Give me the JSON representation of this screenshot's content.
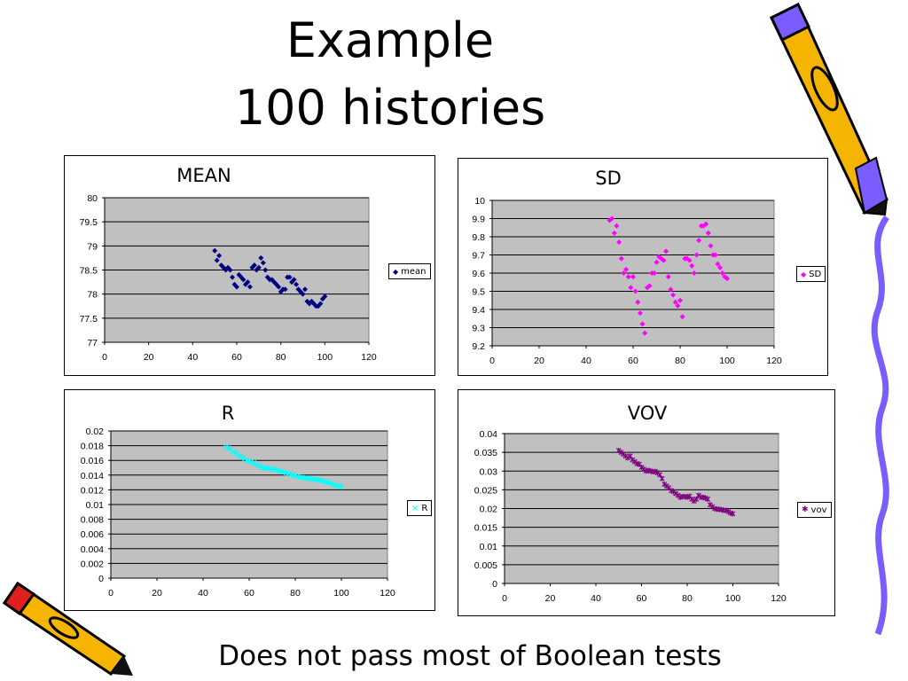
{
  "slide": {
    "title_line1": "Example",
    "title_line2": "100 histories",
    "footer": "Does not pass most of Boolean tests"
  },
  "chart_data": [
    {
      "id": "mean",
      "type": "scatter",
      "title": "MEAN",
      "legend": "mean",
      "marker": "diamond",
      "color": "#000080",
      "xlim": [
        0,
        120
      ],
      "xticks": [
        0,
        20,
        40,
        60,
        80,
        100,
        120
      ],
      "ylim": [
        77,
        80
      ],
      "yticks": [
        "77",
        "77.5",
        "78",
        "78.5",
        "79",
        "79.5",
        "80"
      ],
      "grid": true,
      "legend_position": "right",
      "x": [
        50,
        51,
        52,
        53,
        54,
        55,
        56,
        57,
        58,
        59,
        60,
        61,
        62,
        63,
        64,
        65,
        66,
        67,
        68,
        69,
        70,
        71,
        72,
        73,
        74,
        75,
        76,
        77,
        78,
        79,
        80,
        81,
        82,
        83,
        84,
        85,
        86,
        87,
        88,
        89,
        90,
        91,
        92,
        93,
        94,
        95,
        96,
        97,
        98,
        99,
        100
      ],
      "y": [
        78.9,
        78.7,
        78.8,
        78.6,
        78.55,
        78.5,
        78.55,
        78.5,
        78.35,
        78.2,
        78.15,
        78.4,
        78.35,
        78.3,
        78.2,
        78.25,
        78.15,
        78.55,
        78.6,
        78.5,
        78.55,
        78.75,
        78.65,
        78.5,
        78.35,
        78.3,
        78.3,
        78.25,
        78.2,
        78.15,
        78.05,
        78.1,
        78.1,
        78.35,
        78.35,
        78.25,
        78.3,
        78.2,
        78.1,
        78.05,
        78,
        78.1,
        77.85,
        77.8,
        77.85,
        77.8,
        77.75,
        77.75,
        77.8,
        77.9,
        77.95
      ]
    },
    {
      "id": "sd",
      "type": "scatter",
      "title": "SD",
      "legend": "SD",
      "marker": "diamond",
      "color": "#ff00ff",
      "xlim": [
        0,
        120
      ],
      "xticks": [
        0,
        20,
        40,
        60,
        80,
        100,
        120
      ],
      "ylim": [
        9.2,
        10
      ],
      "yticks": [
        "9.2",
        "9.3",
        "9.4",
        "9.5",
        "9.6",
        "9.7",
        "9.8",
        "9.9",
        "10"
      ],
      "grid": true,
      "legend_position": "right",
      "x": [
        50,
        51,
        52,
        53,
        54,
        55,
        56,
        57,
        58,
        59,
        60,
        61,
        62,
        63,
        64,
        65,
        66,
        67,
        68,
        69,
        70,
        71,
        72,
        73,
        74,
        75,
        76,
        77,
        78,
        79,
        80,
        81,
        82,
        83,
        84,
        85,
        86,
        87,
        88,
        89,
        90,
        91,
        92,
        93,
        94,
        95,
        96,
        97,
        98,
        99,
        100
      ],
      "y": [
        9.89,
        9.9,
        9.82,
        9.86,
        9.77,
        9.68,
        9.6,
        9.62,
        9.58,
        9.52,
        9.58,
        9.5,
        9.44,
        9.38,
        9.32,
        9.27,
        9.52,
        9.53,
        9.6,
        9.6,
        9.66,
        9.69,
        9.68,
        9.67,
        9.72,
        9.58,
        9.51,
        9.48,
        9.44,
        9.42,
        9.45,
        9.36,
        9.68,
        9.68,
        9.67,
        9.64,
        9.6,
        9.7,
        9.78,
        9.86,
        9.86,
        9.87,
        9.82,
        9.75,
        9.7,
        9.7,
        9.65,
        9.63,
        9.6,
        9.58,
        9.57
      ]
    },
    {
      "id": "r",
      "type": "scatter",
      "title": "R",
      "legend": "R",
      "marker": "x",
      "color": "#00ffff",
      "xlim": [
        0,
        120
      ],
      "xticks": [
        0,
        20,
        40,
        60,
        80,
        100,
        120
      ],
      "ylim": [
        0,
        0.02
      ],
      "yticks": [
        "0",
        "0.002",
        "0.004",
        "0.006",
        "0.008",
        "0.01",
        "0.012",
        "0.014",
        "0.016",
        "0.018",
        "0.02"
      ],
      "grid": true,
      "legend_position": "right",
      "x": [
        50,
        51,
        52,
        53,
        54,
        55,
        56,
        57,
        58,
        59,
        60,
        61,
        62,
        63,
        64,
        65,
        66,
        67,
        68,
        69,
        70,
        71,
        72,
        73,
        74,
        75,
        76,
        77,
        78,
        79,
        80,
        81,
        82,
        83,
        84,
        85,
        86,
        87,
        88,
        89,
        90,
        91,
        92,
        93,
        94,
        95,
        96,
        97,
        98,
        99,
        100
      ],
      "y": [
        0.0178,
        0.0177,
        0.0175,
        0.0172,
        0.017,
        0.0168,
        0.0166,
        0.0164,
        0.0162,
        0.016,
        0.0159,
        0.0158,
        0.0157,
        0.0155,
        0.0153,
        0.0151,
        0.015,
        0.015,
        0.0149,
        0.0149,
        0.0148,
        0.0148,
        0.0147,
        0.0146,
        0.0145,
        0.0144,
        0.0143,
        0.0142,
        0.0141,
        0.014,
        0.0139,
        0.0138,
        0.0137,
        0.0137,
        0.0136,
        0.0136,
        0.0135,
        0.0135,
        0.0134,
        0.0134,
        0.0133,
        0.0133,
        0.0132,
        0.0131,
        0.013,
        0.0129,
        0.0128,
        0.0127,
        0.0126,
        0.0125,
        0.0124
      ]
    },
    {
      "id": "vov",
      "type": "scatter",
      "title": "VOV",
      "legend": "vov",
      "marker": "star",
      "color": "#800080",
      "xlim": [
        0,
        120
      ],
      "xticks": [
        0,
        20,
        40,
        60,
        80,
        100,
        120
      ],
      "ylim": [
        0,
        0.04
      ],
      "yticks": [
        "0",
        "0.005",
        "0.01",
        "0.015",
        "0.02",
        "0.025",
        "0.03",
        "0.035",
        "0.04"
      ],
      "grid": true,
      "legend_position": "right",
      "x": [
        50,
        51,
        52,
        53,
        54,
        55,
        56,
        57,
        58,
        59,
        60,
        61,
        62,
        63,
        64,
        65,
        66,
        67,
        68,
        69,
        70,
        71,
        72,
        73,
        74,
        75,
        76,
        77,
        78,
        79,
        80,
        81,
        82,
        83,
        84,
        85,
        86,
        87,
        88,
        89,
        90,
        91,
        92,
        93,
        94,
        95,
        96,
        97,
        98,
        99,
        100
      ],
      "y": [
        0.0355,
        0.035,
        0.0345,
        0.034,
        0.0335,
        0.034,
        0.033,
        0.0325,
        0.032,
        0.0318,
        0.031,
        0.0305,
        0.03,
        0.0302,
        0.03,
        0.0298,
        0.0299,
        0.0295,
        0.029,
        0.028,
        0.0265,
        0.026,
        0.0255,
        0.0248,
        0.0245,
        0.024,
        0.0235,
        0.023,
        0.0232,
        0.0232,
        0.023,
        0.0233,
        0.0225,
        0.022,
        0.0225,
        0.0235,
        0.023,
        0.023,
        0.0228,
        0.0225,
        0.021,
        0.0205,
        0.02,
        0.0198,
        0.0198,
        0.0197,
        0.0195,
        0.0195,
        0.0192,
        0.0188,
        0.0186
      ]
    }
  ]
}
